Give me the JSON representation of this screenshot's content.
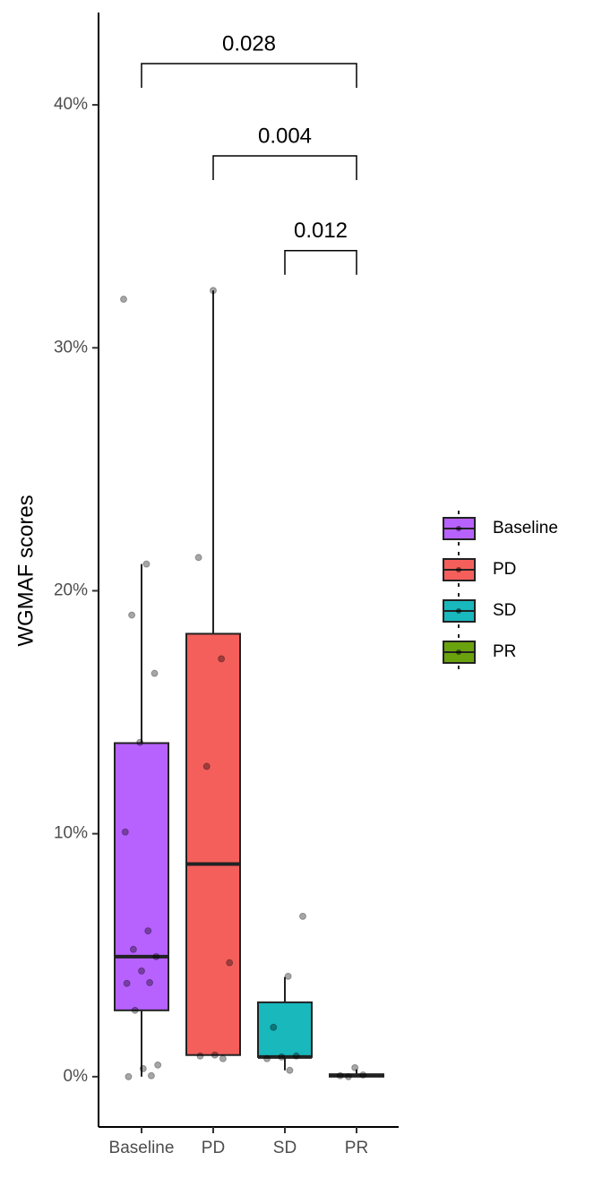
{
  "chart_data": {
    "type": "box",
    "y_label": "WGMAF scores",
    "categories": [
      "Baseline",
      "PD",
      "SD",
      "PR"
    ],
    "ylim": [
      -2.07,
      43.8
    ],
    "yticks": [
      {
        "value": 0,
        "label": "0%"
      },
      {
        "value": 10,
        "label": "10%"
      },
      {
        "value": 20,
        "label": "20%"
      },
      {
        "value": 30,
        "label": "30%"
      },
      {
        "value": 40,
        "label": "40%"
      }
    ],
    "grid": false,
    "legend": "right",
    "series": [
      {
        "name": "Baseline",
        "color": "#b762fe",
        "min": 0,
        "q1": 2.73,
        "median": 4.94,
        "q3": 13.73,
        "max": 21.1,
        "points": [
          32.0,
          21.1,
          19.0,
          16.6,
          13.76,
          10.07,
          6.0,
          5.24,
          4.94,
          4.35,
          3.84,
          3.87,
          2.73,
          0.48,
          0.33,
          0,
          0.04
        ]
      },
      {
        "name": "PD",
        "color": "#f45f5c",
        "min": 0.89,
        "q1": 0.89,
        "median": 8.75,
        "q3": 18.23,
        "max": 32.36,
        "points": [
          32.36,
          21.37,
          17.2,
          12.77,
          4.69,
          0.89,
          0.85,
          0.74
        ]
      },
      {
        "name": "SD",
        "color": "#18b8bd",
        "min": 0.26,
        "q1": 0.81,
        "median": 0.81,
        "q3": 3.06,
        "max": 4.1,
        "points": [
          6.6,
          4.13,
          2.03,
          0.85,
          0.81,
          0.74,
          0.26
        ]
      },
      {
        "name": "PR",
        "color": "#6aa20e",
        "min": 0,
        "q1": 0,
        "median": 0.05,
        "q3": 0.1,
        "max": 0.3,
        "points": [
          0.37,
          0.04,
          0.07,
          0
        ]
      }
    ],
    "comparisons": [
      {
        "from": "Baseline",
        "to": "PR",
        "label": "0.028",
        "y": 41.7
      },
      {
        "from": "PD",
        "to": "PR",
        "label": "0.004",
        "y": 37.9
      },
      {
        "from": "SD",
        "to": "PR",
        "label": "0.012",
        "y": 34.0
      }
    ]
  }
}
